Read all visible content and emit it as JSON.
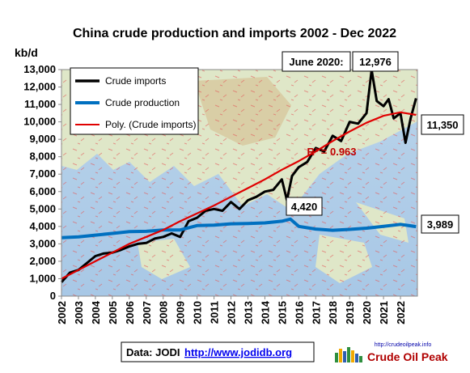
{
  "chart_data": {
    "type": "line",
    "title": "China crude production and imports 2002 - Dec 2022",
    "ylabel": "kb/d",
    "ylim": [
      0,
      13000
    ],
    "yticks": [
      "0",
      "1,000",
      "2,000",
      "3,000",
      "4,000",
      "5,000",
      "6,000",
      "7,000",
      "8,000",
      "9,000",
      "10,000",
      "11,000",
      "12,000",
      "13,000"
    ],
    "xticks": [
      "2002",
      "2003",
      "2004",
      "2005",
      "2006",
      "2007",
      "2008",
      "2009",
      "2010",
      "2011",
      "2012",
      "2013",
      "2014",
      "2015",
      "2016",
      "2017",
      "2018",
      "2019",
      "2020",
      "2021",
      "2022"
    ],
    "xlim": [
      2002.0,
      2023.0
    ],
    "legend_position": "top-left",
    "grid": false,
    "background": "world map",
    "series": [
      {
        "name": "Crude imports",
        "color": "#000000",
        "points": [
          [
            2002.0,
            800
          ],
          [
            2002.5,
            1350
          ],
          [
            2003.0,
            1500
          ],
          [
            2003.5,
            1900
          ],
          [
            2004.0,
            2300
          ],
          [
            2004.5,
            2450
          ],
          [
            2005.0,
            2500
          ],
          [
            2005.5,
            2650
          ],
          [
            2006.0,
            2850
          ],
          [
            2006.5,
            3000
          ],
          [
            2007.0,
            3050
          ],
          [
            2007.5,
            3300
          ],
          [
            2008.0,
            3400
          ],
          [
            2008.5,
            3600
          ],
          [
            2009.0,
            3400
          ],
          [
            2009.5,
            4300
          ],
          [
            2010.0,
            4500
          ],
          [
            2010.5,
            4900
          ],
          [
            2011.0,
            5000
          ],
          [
            2011.5,
            4900
          ],
          [
            2012.0,
            5400
          ],
          [
            2012.5,
            5000
          ],
          [
            2013.0,
            5500
          ],
          [
            2013.5,
            5700
          ],
          [
            2014.0,
            6000
          ],
          [
            2014.5,
            6100
          ],
          [
            2015.0,
            6700
          ],
          [
            2015.3,
            5500
          ],
          [
            2015.6,
            6900
          ],
          [
            2016.0,
            7400
          ],
          [
            2016.5,
            7700
          ],
          [
            2017.0,
            8500
          ],
          [
            2017.5,
            8300
          ],
          [
            2018.0,
            9200
          ],
          [
            2018.5,
            8900
          ],
          [
            2019.0,
            10000
          ],
          [
            2019.5,
            9900
          ],
          [
            2020.0,
            10500
          ],
          [
            2020.3,
            12976
          ],
          [
            2020.6,
            11200
          ],
          [
            2021.0,
            10900
          ],
          [
            2021.3,
            11300
          ],
          [
            2021.6,
            10200
          ],
          [
            2022.0,
            10500
          ],
          [
            2022.3,
            8800
          ],
          [
            2022.6,
            10200
          ],
          [
            2022.92,
            11350
          ]
        ]
      },
      {
        "name": "Crude production",
        "color": "#0070c0",
        "points": [
          [
            2002.0,
            3350
          ],
          [
            2003.0,
            3400
          ],
          [
            2004.0,
            3500
          ],
          [
            2005.0,
            3600
          ],
          [
            2006.0,
            3700
          ],
          [
            2007.0,
            3720
          ],
          [
            2008.0,
            3800
          ],
          [
            2009.0,
            3800
          ],
          [
            2010.0,
            4050
          ],
          [
            2011.0,
            4070
          ],
          [
            2012.0,
            4150
          ],
          [
            2013.0,
            4170
          ],
          [
            2014.0,
            4200
          ],
          [
            2015.0,
            4300
          ],
          [
            2015.5,
            4420
          ],
          [
            2016.0,
            4000
          ],
          [
            2017.0,
            3850
          ],
          [
            2018.0,
            3780
          ],
          [
            2019.0,
            3830
          ],
          [
            2020.0,
            3900
          ],
          [
            2021.0,
            4000
          ],
          [
            2022.0,
            4120
          ],
          [
            2022.92,
            3989
          ]
        ]
      },
      {
        "name": "Poly. (Crude imports)",
        "color": "#e00000",
        "points": [
          [
            2002.0,
            1000
          ],
          [
            2003.0,
            1500
          ],
          [
            2004.0,
            2000
          ],
          [
            2005.0,
            2500
          ],
          [
            2006.0,
            3000
          ],
          [
            2007.0,
            3400
          ],
          [
            2008.0,
            3800
          ],
          [
            2009.0,
            4300
          ],
          [
            2010.0,
            4750
          ],
          [
            2011.0,
            5200
          ],
          [
            2012.0,
            5700
          ],
          [
            2013.0,
            6200
          ],
          [
            2014.0,
            6700
          ],
          [
            2015.0,
            7250
          ],
          [
            2016.0,
            7750
          ],
          [
            2017.0,
            8300
          ],
          [
            2018.0,
            8900
          ],
          [
            2019.0,
            9450
          ],
          [
            2020.0,
            9950
          ],
          [
            2021.0,
            10350
          ],
          [
            2022.0,
            10550
          ],
          [
            2022.92,
            10400
          ]
        ]
      }
    ],
    "annotations": {
      "r2_label": "R² = 0.963",
      "peak_label": "June 2020:",
      "peak_value": "12,976",
      "last_imports": "11,350",
      "production_peak": "4,420",
      "last_production": "3,989"
    }
  },
  "footer": {
    "source_prefix": "Data: JODI",
    "source_link": "http://www.jodidb.org"
  },
  "logo": {
    "url": "http://crudeoilpeak.info",
    "name": "Crude Oil Peak"
  }
}
